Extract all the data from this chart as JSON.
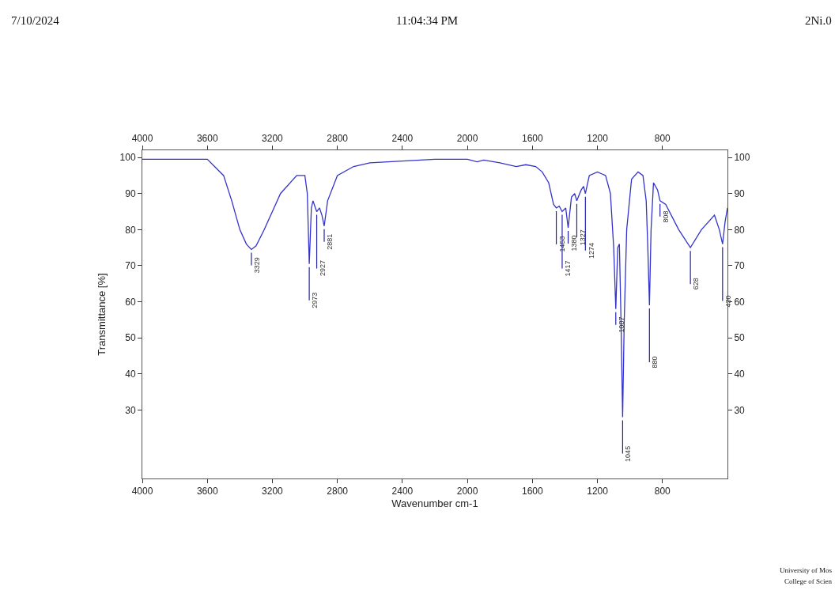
{
  "chart_data": {
    "type": "line",
    "xlabel": "Wavenumber cm-1",
    "ylabel": "Transmittance [%]",
    "x": [
      4000,
      3800,
      3600,
      3500,
      3450,
      3400,
      3360,
      3329,
      3300,
      3250,
      3150,
      3050,
      3000,
      2985,
      2973,
      2960,
      2950,
      2935,
      2927,
      2910,
      2895,
      2881,
      2860,
      2800,
      2700,
      2600,
      2400,
      2200,
      2000,
      1940,
      1900,
      1800,
      1700,
      1640,
      1580,
      1540,
      1500,
      1470,
      1453,
      1435,
      1417,
      1395,
      1380,
      1360,
      1340,
      1327,
      1300,
      1285,
      1274,
      1250,
      1200,
      1150,
      1120,
      1100,
      1087,
      1075,
      1065,
      1055,
      1045,
      1035,
      1020,
      990,
      950,
      920,
      900,
      890,
      880,
      870,
      855,
      830,
      815,
      780,
      700,
      628,
      560,
      480,
      450,
      430,
      415,
      400
    ],
    "series": [
      {
        "color": "#3333cc",
        "values": [
          99.5,
          99.5,
          99.5,
          95,
          88,
          80,
          76,
          74.5,
          75.5,
          80,
          90,
          95,
          95,
          90,
          70.5,
          86,
          88,
          86,
          85,
          86,
          84,
          81,
          88,
          95,
          97.5,
          98.5,
          99,
          99.5,
          99.5,
          98.8,
          99.3,
          98.5,
          97.5,
          98,
          97.5,
          96,
          93,
          87,
          86,
          86.5,
          85,
          86,
          80.5,
          89,
          90,
          88,
          91,
          92,
          90,
          95,
          96,
          95,
          90,
          75,
          58,
          75,
          76,
          55,
          28,
          55,
          80,
          94,
          96,
          95,
          88,
          75,
          59,
          80,
          93,
          91,
          88,
          87,
          80,
          75,
          80,
          84,
          80,
          76,
          82,
          86
        ]
      }
    ],
    "xlim": [
      4000,
      400
    ],
    "ylim": [
      11,
      102
    ],
    "xticks": [
      4000,
      3600,
      3200,
      2800,
      2400,
      2000,
      1600,
      1200,
      800
    ],
    "yticks": [
      30,
      40,
      50,
      60,
      70,
      80,
      90,
      100
    ],
    "x2lim": [
      4000,
      400
    ],
    "x2ticks": [
      4000,
      3600,
      3200,
      2800,
      2400,
      2000,
      1600,
      1200,
      800
    ],
    "y2lim": [
      11,
      102
    ],
    "y2ticks": [
      30,
      40,
      50,
      60,
      70,
      80,
      90,
      100
    ],
    "marker": "none",
    "line_style": "solid",
    "annotations": [
      "7/10/2024",
      "11:04:34 PM",
      "2Ni.0",
      "University of Mos",
      "College of Scien",
      {
        "text": "3329",
        "x": 3329,
        "y": 74.5
      },
      {
        "text": "2973",
        "x": 2973,
        "y": 70.5
      },
      {
        "text": "2927",
        "x": 2927,
        "y": 85
      },
      {
        "text": "2881",
        "x": 2881,
        "y": 81
      },
      {
        "text": "1453",
        "x": 1453,
        "y": 86
      },
      {
        "text": "1417",
        "x": 1417,
        "y": 85
      },
      {
        "text": "1380",
        "x": 1380,
        "y": 80.5
      },
      {
        "text": "1327",
        "x": 1327,
        "y": 88
      },
      {
        "text": "1274",
        "x": 1274,
        "y": 90
      },
      {
        "text": "1087",
        "x": 1087,
        "y": 58
      },
      {
        "text": "1045",
        "x": 1045,
        "y": 28
      },
      {
        "text": "880",
        "x": 880,
        "y": 59
      },
      {
        "text": "808",
        "x": 815,
        "y": 88
      },
      {
        "text": "628",
        "x": 628,
        "y": 75
      },
      {
        "text": "430",
        "x": 430,
        "y": 76
      }
    ]
  }
}
